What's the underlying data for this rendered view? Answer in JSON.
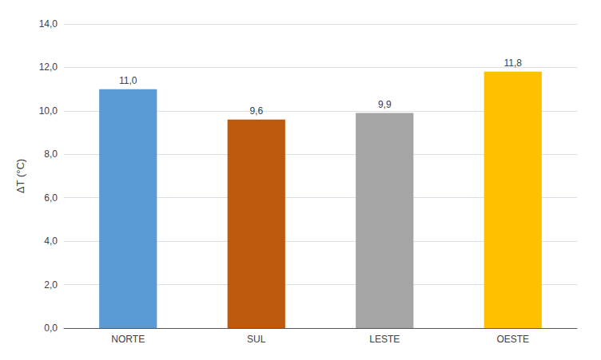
{
  "chart_data": {
    "type": "bar",
    "ylabel": "ΔT (°C)",
    "categories": [
      "NORTE",
      "SUL",
      "LESTE",
      "OESTE"
    ],
    "values": [
      11.0,
      9.6,
      9.9,
      11.8
    ],
    "value_labels": [
      "11,0",
      "9,6",
      "9,9",
      "11,8"
    ],
    "data_labels": true,
    "colors": [
      "#5B9BD5",
      "#BE5A0E",
      "#A5A5A5",
      "#FFC000"
    ],
    "ylim": [
      0,
      14
    ],
    "yticks": [
      {
        "value": 0,
        "label": "0,0"
      },
      {
        "value": 2,
        "label": "2,0"
      },
      {
        "value": 4,
        "label": "4,0"
      },
      {
        "value": 6,
        "label": "6,0"
      },
      {
        "value": 8,
        "label": "8,0"
      },
      {
        "value": 10,
        "label": "10,0"
      },
      {
        "value": 12,
        "label": "12,0"
      },
      {
        "value": 14,
        "label": "14,0"
      }
    ],
    "grid": true
  }
}
